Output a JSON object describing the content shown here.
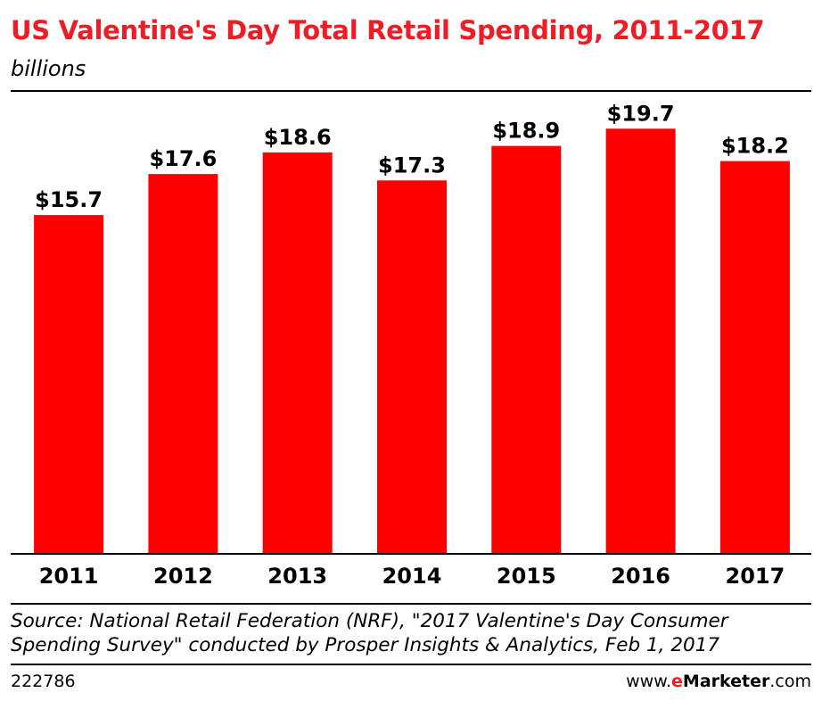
{
  "chart_data": {
    "type": "bar",
    "title": "US Valentine's Day Total Retail Spending, 2011-2017",
    "subtitle": "billions",
    "categories": [
      "2011",
      "2012",
      "2013",
      "2014",
      "2015",
      "2016",
      "2017"
    ],
    "values": [
      15.7,
      17.6,
      18.6,
      17.3,
      18.9,
      19.7,
      18.2
    ],
    "value_labels": [
      "$15.7",
      "$17.6",
      "$18.6",
      "$17.3",
      "$18.9",
      "$19.7",
      "$18.2"
    ],
    "ylim": [
      0,
      21
    ],
    "grid": false,
    "legend": "none"
  },
  "footer": {
    "source_line1": "Source: National Retail Federation (NRF), \"2017 Valentine's Day Consumer",
    "source_line2": "Spending Survey\" conducted by Prosper Insights & Analytics, Feb 1, 2017",
    "chart_id": "222786",
    "brand_prefix": "www.",
    "brand_e": "e",
    "brand_name": "Marketer",
    "brand_suffix": ".com"
  },
  "colors": {
    "bar": "#ff0000",
    "title": "#ee1c25",
    "text": "#000000"
  }
}
